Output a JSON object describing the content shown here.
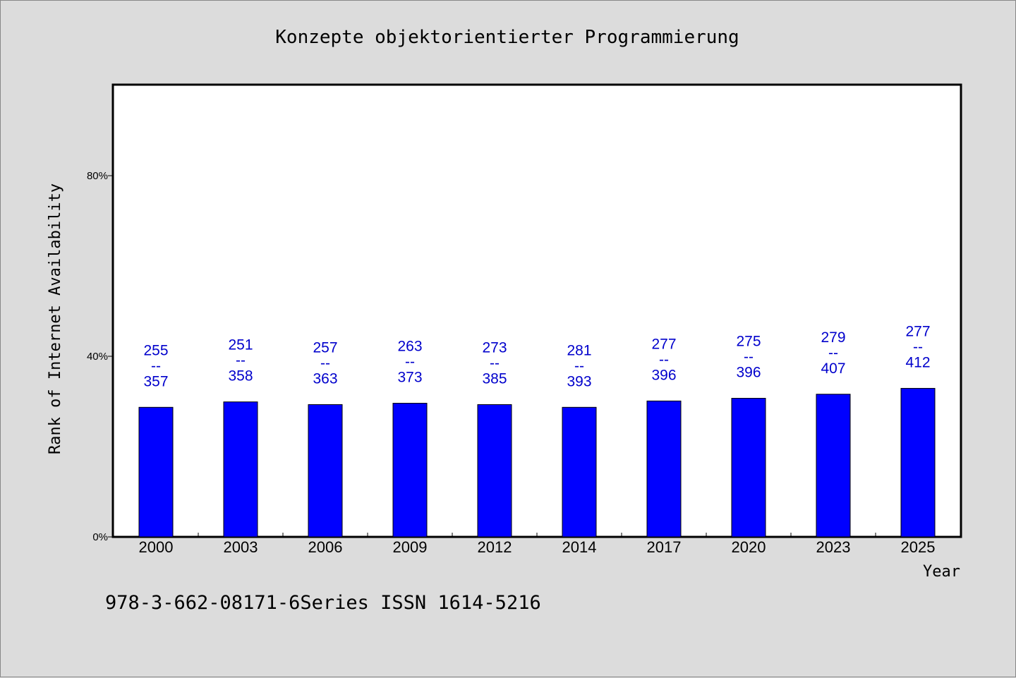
{
  "chart_data": {
    "type": "bar",
    "title": "Konzepte objektorientierter Programmierung",
    "xlabel": "Year",
    "ylabel": "Rank of Internet Availability",
    "categories": [
      "2000",
      "2003",
      "2006",
      "2009",
      "2012",
      "2014",
      "2017",
      "2020",
      "2023",
      "2025"
    ],
    "values": [
      28.7,
      29.9,
      29.3,
      29.6,
      29.3,
      28.7,
      30.1,
      30.7,
      31.6,
      32.9
    ],
    "value_labels": [
      [
        "255",
        "--",
        "357"
      ],
      [
        "251",
        "--",
        "358"
      ],
      [
        "257",
        "--",
        "363"
      ],
      [
        "263",
        "--",
        "373"
      ],
      [
        "273",
        "--",
        "385"
      ],
      [
        "281",
        "--",
        "393"
      ],
      [
        "277",
        "--",
        "396"
      ],
      [
        "275",
        "--",
        "396"
      ],
      [
        "279",
        "--",
        "407"
      ],
      [
        "277",
        "--",
        "412"
      ]
    ],
    "ylim": [
      0,
      100
    ],
    "yticks": [
      0,
      40,
      80
    ],
    "ytick_labels": [
      "0%",
      "40%",
      "80%"
    ],
    "bar_color": "#0000ff",
    "label_color": "#0000cc",
    "grid": false,
    "legend": "none"
  },
  "footer": {
    "text": "978-3-662-08171-6Series ISSN 1614-5216"
  }
}
